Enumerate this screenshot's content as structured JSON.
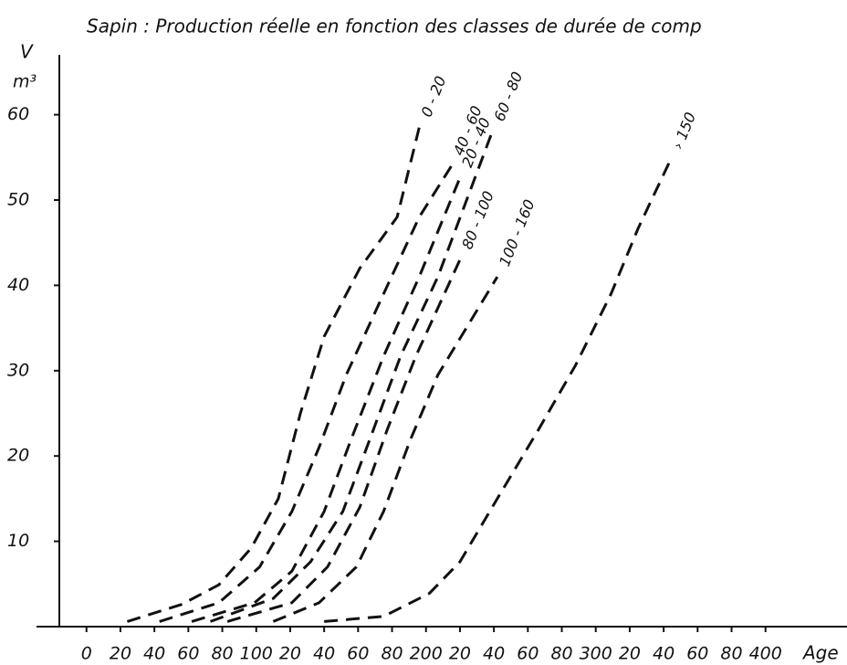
{
  "chart_data": {
    "type": "line",
    "title": "Sapin : Production réelle en fonction des classes de durée de comp",
    "y_label": "V",
    "y_unit": "m³",
    "x_label": "Age",
    "xlim": [
      -16,
      448
    ],
    "ylim": [
      0,
      67
    ],
    "xticks": [
      0,
      20,
      40,
      60,
      80,
      100,
      {
        "value": 120,
        "label": "20"
      },
      {
        "value": 140,
        "label": "40"
      },
      {
        "value": 160,
        "label": "60"
      },
      {
        "value": 180,
        "label": "80"
      },
      200,
      {
        "value": 220,
        "label": "20"
      },
      {
        "value": 240,
        "label": "40"
      },
      {
        "value": 260,
        "label": "60"
      },
      {
        "value": 280,
        "label": "80"
      },
      300,
      {
        "value": 320,
        "label": "20"
      },
      {
        "value": 340,
        "label": "40"
      },
      {
        "value": 360,
        "label": "60"
      },
      {
        "value": 380,
        "label": "80"
      },
      400
    ],
    "yticks": [
      10,
      20,
      30,
      40,
      50,
      60
    ],
    "series": [
      {
        "name": "0 - 20",
        "color": "#111",
        "x": [
          24,
          56,
          78,
          97,
          113,
          126,
          140,
          161,
          183,
          196
        ],
        "values": [
          0.6,
          2.6,
          4.9,
          9.2,
          15,
          25,
          34,
          42,
          48,
          58.5
        ]
      },
      {
        "name": "40 - 60",
        "color": "#111",
        "x": [
          43,
          78,
          102,
          121,
          137,
          153,
          175,
          196,
          215
        ],
        "values": [
          0.6,
          2.8,
          7,
          13.5,
          21,
          29.5,
          39,
          48,
          54
        ]
      },
      {
        "name": "20 - 40",
        "color": "#111",
        "x": [
          62,
          99,
          121,
          140,
          156,
          175,
          196,
          220
        ],
        "values": [
          0.6,
          2.8,
          6.5,
          13.5,
          22,
          31.7,
          41,
          52.6
        ]
      },
      {
        "name": "60 - 80",
        "color": "#111",
        "x": [
          73,
          110,
          132,
          151,
          167,
          185,
          207,
          239
        ],
        "values": [
          0.6,
          3.3,
          7.6,
          13.5,
          22,
          31.7,
          41,
          58
        ]
      },
      {
        "name": "80 - 100",
        "color": "#111",
        "x": [
          83,
          121,
          142,
          161,
          177,
          194,
          220
        ],
        "values": [
          0.6,
          2.8,
          7,
          14,
          23,
          31.7,
          43
        ]
      },
      {
        "name": "100 - 160",
        "color": "#111",
        "x": [
          110,
          137,
          159,
          175,
          191,
          207,
          242
        ],
        "values": [
          0.6,
          2.8,
          7,
          13.5,
          22,
          29.5,
          41
        ]
      },
      {
        "name": "› 150",
        "color": "#111",
        "x": [
          140,
          175,
          202,
          220,
          242,
          266,
          288,
          309,
          325,
          344
        ],
        "values": [
          0.6,
          1.2,
          3.9,
          7.6,
          15,
          23,
          30.6,
          39,
          46.7,
          54.7
        ]
      }
    ]
  }
}
